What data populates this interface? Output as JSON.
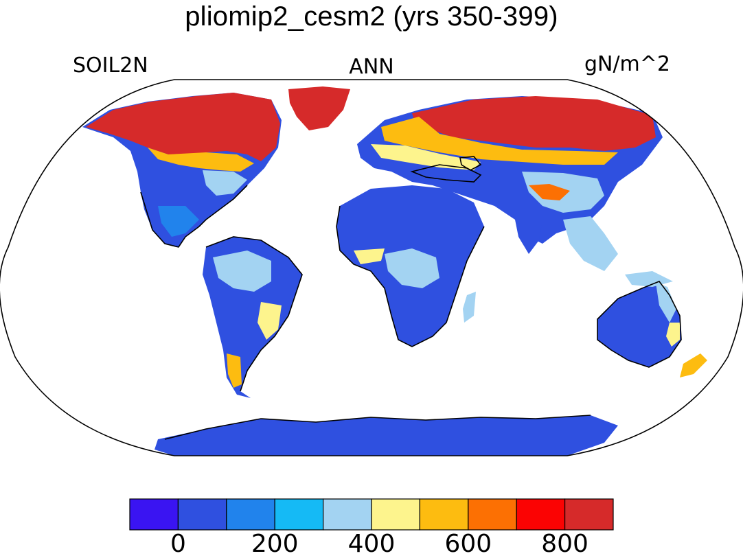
{
  "title": "pliomip2_cesm2 (yrs 350-399)",
  "left_label": "SOIL2N",
  "center_label": "ANN",
  "right_label": "gN/m^2",
  "colorbar": {
    "colors": [
      "#3a14f2",
      "#2f50e0",
      "#2183ec",
      "#15baf5",
      "#a3d3f2",
      "#fdf48d",
      "#fdbc10",
      "#fc7003",
      "#fb0303",
      "#d62a2a"
    ],
    "tick_values": [
      0,
      200,
      400,
      600,
      800
    ],
    "tick_labels": [
      "0",
      "200",
      "400",
      "600",
      "800"
    ]
  },
  "map": {
    "projection": "Robinson",
    "variable": "SOIL2N",
    "season": "ANN",
    "units": "gN/m^2",
    "ocean_color": "#ffffff",
    "coastline_color": "#000000"
  }
}
